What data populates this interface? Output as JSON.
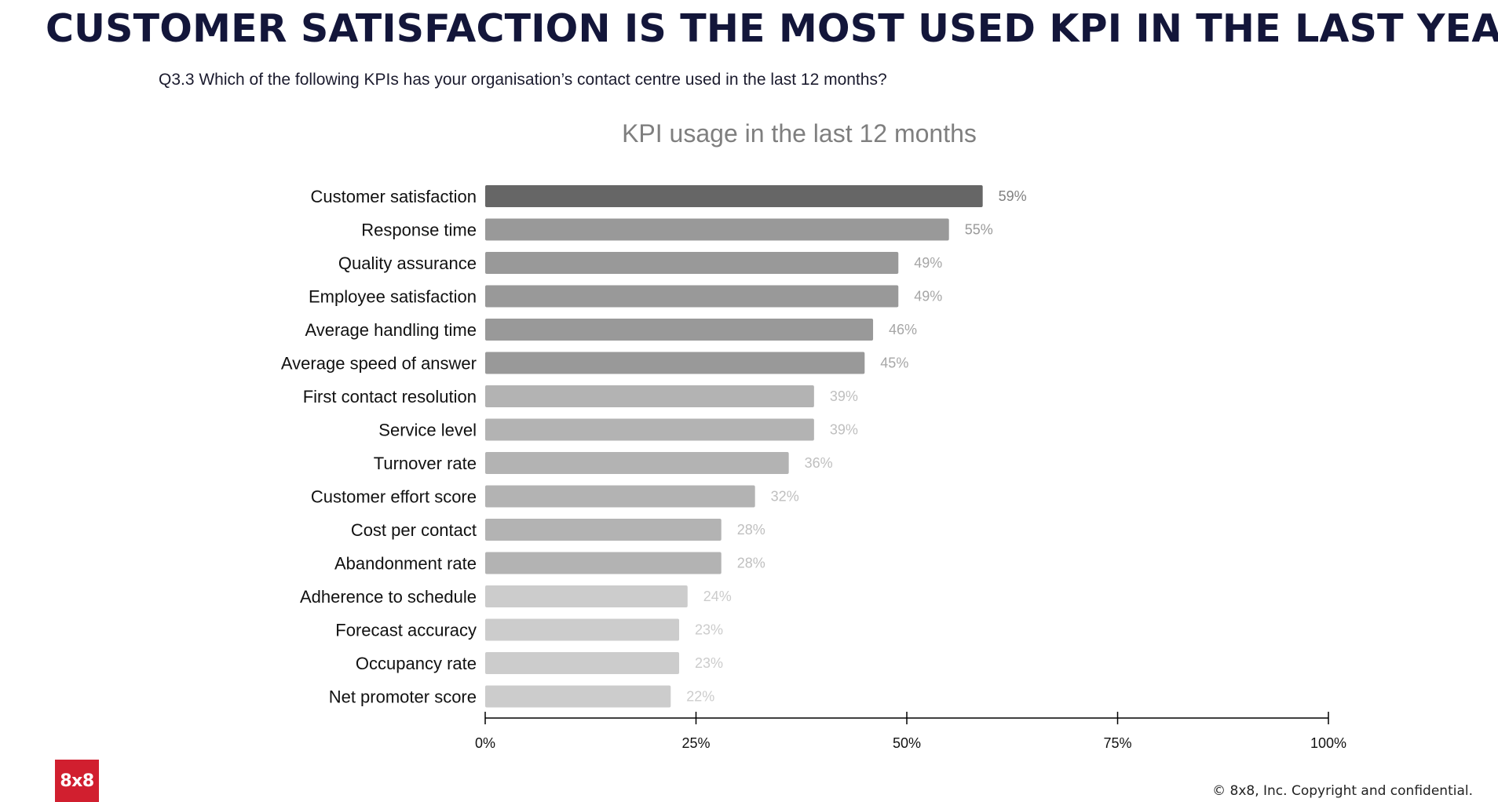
{
  "page": {
    "title": "CUSTOMER SATISFACTION IS THE MOST USED KPI IN THE LAST YEAR",
    "question": "Q3.3 Which of the following KPIs has your organisation’s contact centre used in the last 12 months?",
    "logo_text": "8x8",
    "copyright": "© 8x8, Inc. Copyright and confidential."
  },
  "colors": {
    "title": "#13163a",
    "brand": "#d11f2f",
    "bar_top": "#666666",
    "bar_tier2": "#999999",
    "bar_tier3": "#b3b3b3",
    "bar_tier4": "#cccccc",
    "value_label_dark": "#808080",
    "value_label_light": "#b3b3b3",
    "axis": "#000000"
  },
  "chart_data": {
    "type": "bar",
    "orientation": "horizontal",
    "title": "KPI usage in the last 12 months",
    "categories": [
      "Customer satisfaction",
      "Response time",
      "Quality assurance",
      "Employee satisfaction",
      "Average handling time",
      "Average speed of answer",
      "First contact resolution",
      "Service level",
      "Turnover rate",
      "Customer effort score",
      "Cost per contact",
      "Abandonment rate",
      "Adherence to schedule",
      "Forecast accuracy",
      "Occupancy rate",
      "Net promoter score"
    ],
    "values": [
      59,
      55,
      49,
      49,
      46,
      45,
      39,
      39,
      36,
      32,
      28,
      28,
      24,
      23,
      23,
      22
    ],
    "value_labels": [
      "59%",
      "55%",
      "49%",
      "49%",
      "46%",
      "45%",
      "39%",
      "39%",
      "36%",
      "32%",
      "28%",
      "28%",
      "24%",
      "23%",
      "23%",
      "22%"
    ],
    "bar_colors": [
      "#666666",
      "#999999",
      "#999999",
      "#999999",
      "#999999",
      "#999999",
      "#b3b3b3",
      "#b3b3b3",
      "#b3b3b3",
      "#b3b3b3",
      "#b3b3b3",
      "#b3b3b3",
      "#cccccc",
      "#cccccc",
      "#cccccc",
      "#cccccc"
    ],
    "label_colors": [
      "#808080",
      "#999999",
      "#a6a6a6",
      "#a6a6a6",
      "#a6a6a6",
      "#a6a6a6",
      "#bfbfbf",
      "#bfbfbf",
      "#bfbfbf",
      "#bfbfbf",
      "#bfbfbf",
      "#bfbfbf",
      "#cccccc",
      "#cccccc",
      "#cccccc",
      "#cccccc"
    ],
    "xlim": [
      0,
      100
    ],
    "xticks": [
      0,
      25,
      50,
      75,
      100
    ],
    "xtick_labels": [
      "0%",
      "25%",
      "50%",
      "75%",
      "100%"
    ],
    "xlabel": "",
    "ylabel": "",
    "grid": false,
    "legend": "none"
  }
}
